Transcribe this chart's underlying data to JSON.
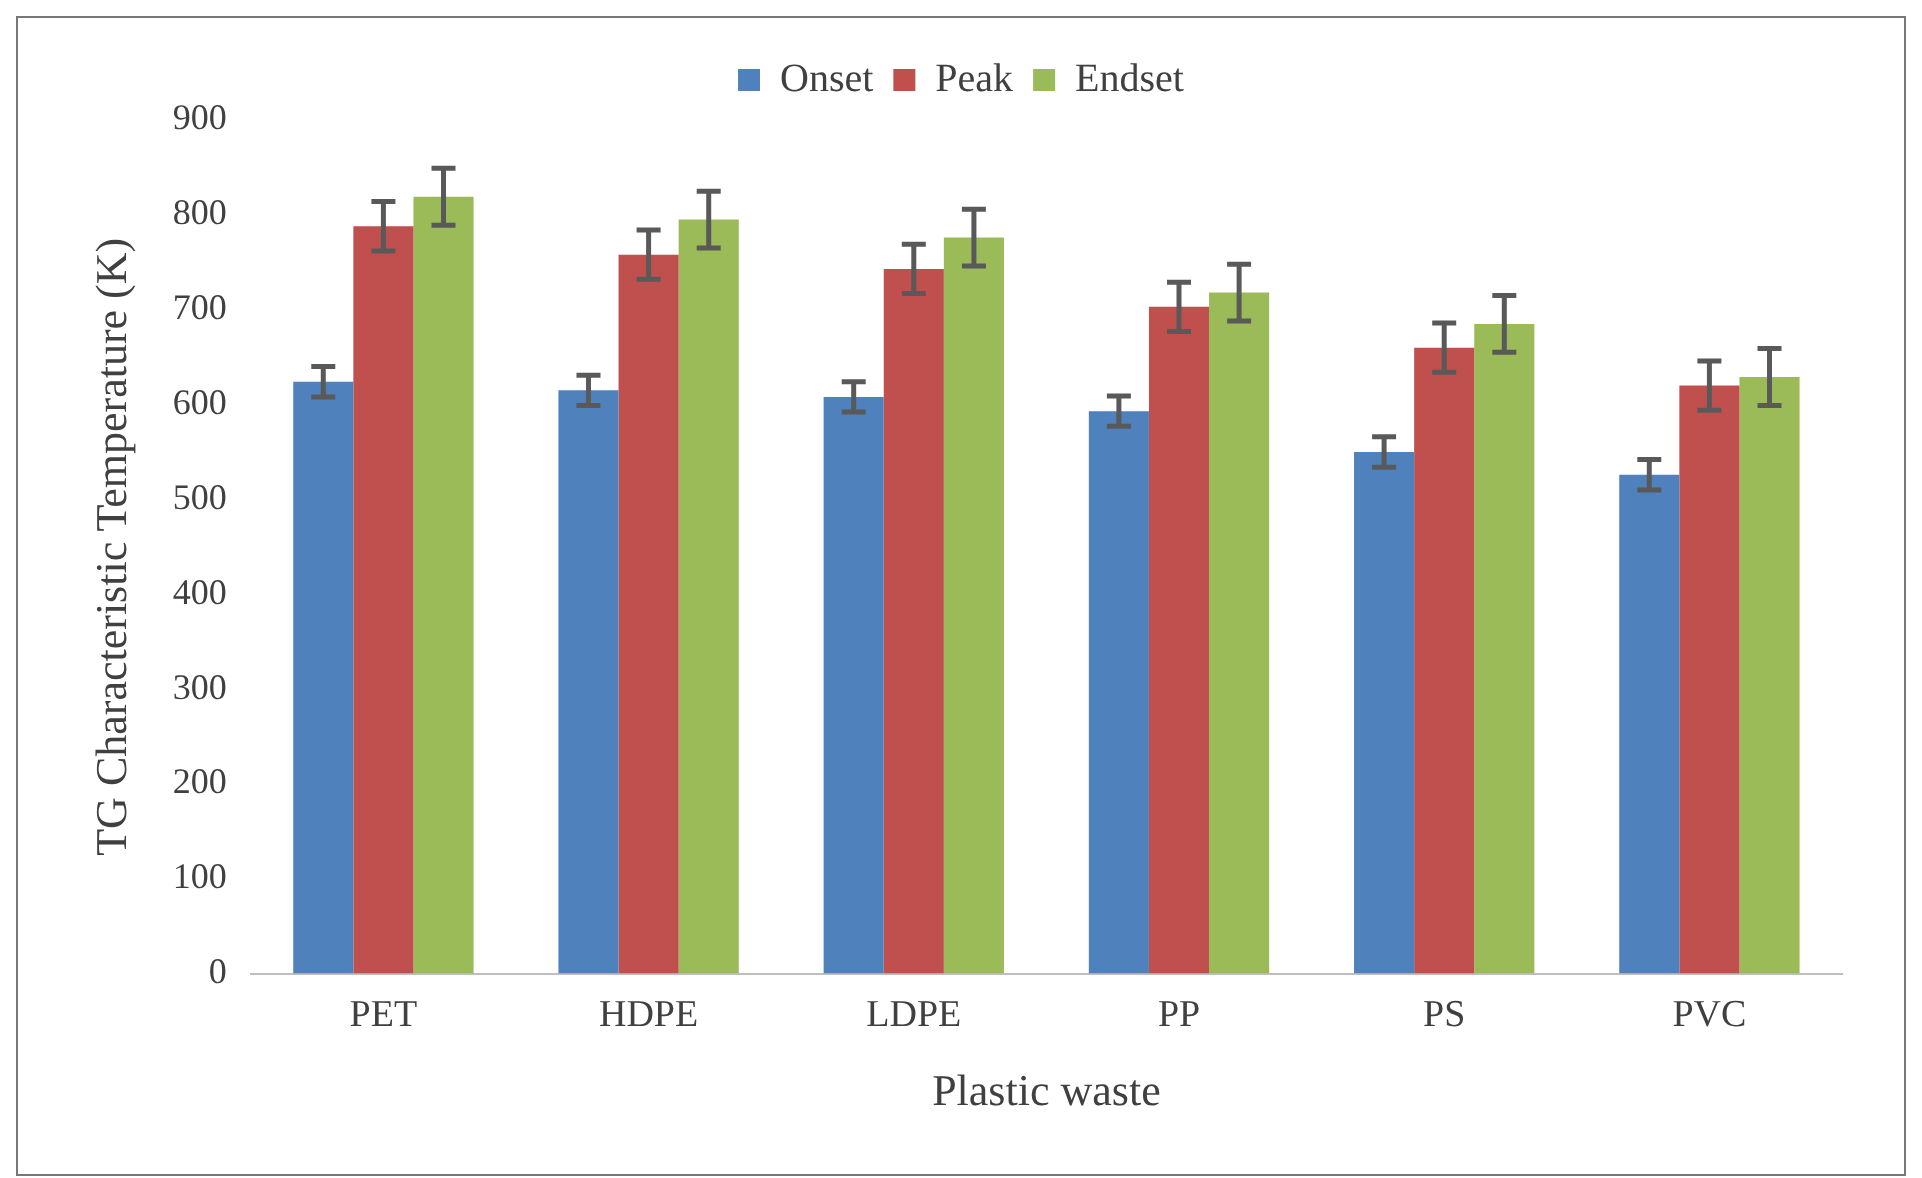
{
  "chart_data": {
    "type": "bar",
    "xlabel": "Plastic waste",
    "ylabel": "TG Characteristic Temperature (K)",
    "categories": [
      "PET",
      "HDPE",
      "LDPE",
      "PP",
      "PS",
      "PVC"
    ],
    "series": [
      {
        "name": "Onset",
        "color": "#4f81bd",
        "values": [
          624,
          615,
          608,
          593,
          550,
          526
        ],
        "errors": [
          16,
          16,
          16,
          16,
          16,
          16
        ]
      },
      {
        "name": "Peak",
        "color": "#c0504d",
        "values": [
          788,
          758,
          743,
          703,
          660,
          620
        ],
        "errors": [
          26,
          26,
          26,
          26,
          26,
          26
        ]
      },
      {
        "name": "Endset",
        "color": "#9bbb59",
        "values": [
          819,
          795,
          776,
          718,
          685,
          629
        ],
        "errors": [
          30,
          30,
          30,
          30,
          30,
          30
        ]
      }
    ],
    "ylim": [
      0,
      900
    ],
    "yticks": [
      0,
      100,
      200,
      300,
      400,
      500,
      600,
      700,
      800,
      900
    ],
    "grid": false,
    "legend": "top"
  }
}
